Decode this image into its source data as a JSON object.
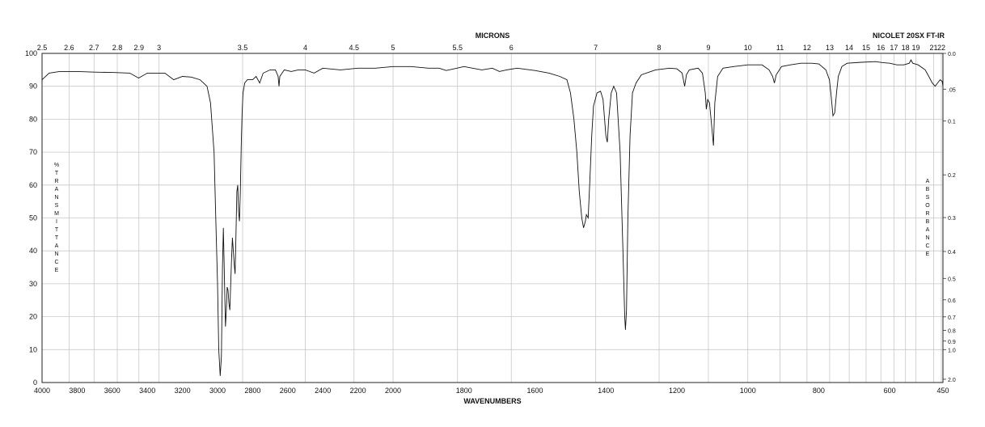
{
  "chart_data": {
    "type": "line",
    "title_microns": "MICRONS",
    "instrument": "NICOLET 20SX FT-IR",
    "xlabel": "WAVENUMBERS",
    "ylabel_left": "% TRANSMITTANCE",
    "ylabel_right": "ABSORBANCE",
    "xlim": [
      4000,
      450
    ],
    "ylim": [
      0,
      100
    ],
    "grid": true,
    "wavenumber_ticks": [
      "4000",
      "3800",
      "3600",
      "3400",
      "3200",
      "3000",
      "2800",
      "2600",
      "2400",
      "2200",
      "2000",
      "1800",
      "1600",
      "1400",
      "1200",
      "1000",
      "800",
      "600",
      "450"
    ],
    "micron_ticks": [
      {
        "v": 2.5,
        "t": "2.5"
      },
      {
        "v": 2.6,
        "t": "2.6"
      },
      {
        "v": 2.7,
        "t": "2.7"
      },
      {
        "v": 2.8,
        "t": "2.8"
      },
      {
        "v": 2.9,
        "t": "2.9"
      },
      {
        "v": 3,
        "t": "3"
      },
      {
        "v": 3.5,
        "t": "3.5"
      },
      {
        "v": 4,
        "t": "4"
      },
      {
        "v": 4.5,
        "t": "4.5"
      },
      {
        "v": 5,
        "t": "5"
      },
      {
        "v": 5.5,
        "t": "5.5"
      },
      {
        "v": 6,
        "t": "6"
      },
      {
        "v": 7,
        "t": "7"
      },
      {
        "v": 8,
        "t": "8"
      },
      {
        "v": 9,
        "t": "9"
      },
      {
        "v": 10,
        "t": "10"
      },
      {
        "v": 11,
        "t": "11"
      },
      {
        "v": 12,
        "t": "12"
      },
      {
        "v": 13,
        "t": "13"
      },
      {
        "v": 14,
        "t": "14"
      },
      {
        "v": 15,
        "t": "15"
      },
      {
        "v": 16,
        "t": "16"
      },
      {
        "v": 17,
        "t": "17"
      },
      {
        "v": 18,
        "t": "18"
      },
      {
        "v": 19,
        "t": "19"
      },
      {
        "v": 21,
        "t": "21"
      },
      {
        "v": 22,
        "t": "22"
      }
    ],
    "transmittance_ticks": [
      "0",
      "10",
      "20",
      "30",
      "40",
      "50",
      "60",
      "70",
      "80",
      "90",
      "100"
    ],
    "absorbance_ticks": [
      {
        "v": 0.0,
        "t": "0.0"
      },
      {
        "v": 0.05,
        "t": ".05"
      },
      {
        "v": 0.1,
        "t": "0.1"
      },
      {
        "v": 0.2,
        "t": "0.2"
      },
      {
        "v": 0.3,
        "t": "0.3"
      },
      {
        "v": 0.4,
        "t": "0.4"
      },
      {
        "v": 0.5,
        "t": "0.5"
      },
      {
        "v": 0.6,
        "t": "0.6"
      },
      {
        "v": 0.7,
        "t": "0.7"
      },
      {
        "v": 0.8,
        "t": "0.8"
      },
      {
        "v": 0.9,
        "t": "0.9"
      },
      {
        "v": 1.0,
        "t": "1.0"
      },
      {
        "v": 2.0,
        "t": "2.0"
      }
    ],
    "spectrum": [
      [
        4000,
        92
      ],
      [
        3960,
        94
      ],
      [
        3900,
        94.5
      ],
      [
        3800,
        94.5
      ],
      [
        3700,
        94.3
      ],
      [
        3600,
        94.2
      ],
      [
        3500,
        94
      ],
      [
        3450,
        92.5
      ],
      [
        3400,
        94
      ],
      [
        3300,
        94
      ],
      [
        3250,
        92
      ],
      [
        3200,
        93
      ],
      [
        3150,
        92.8
      ],
      [
        3100,
        92
      ],
      [
        3060,
        90
      ],
      [
        3040,
        85
      ],
      [
        3020,
        70
      ],
      [
        3010,
        50
      ],
      [
        3000,
        30
      ],
      [
        2993,
        10
      ],
      [
        2985,
        2
      ],
      [
        2978,
        8
      ],
      [
        2972,
        35
      ],
      [
        2967,
        47
      ],
      [
        2963,
        38
      ],
      [
        2958,
        25
      ],
      [
        2955,
        17
      ],
      [
        2950,
        22
      ],
      [
        2945,
        29
      ],
      [
        2940,
        28
      ],
      [
        2935,
        24
      ],
      [
        2930,
        22
      ],
      [
        2925,
        30
      ],
      [
        2920,
        38
      ],
      [
        2915,
        44
      ],
      [
        2910,
        40
      ],
      [
        2905,
        36
      ],
      [
        2900,
        33
      ],
      [
        2895,
        45
      ],
      [
        2890,
        58
      ],
      [
        2885,
        60
      ],
      [
        2880,
        52
      ],
      [
        2875,
        49
      ],
      [
        2870,
        58
      ],
      [
        2865,
        72
      ],
      [
        2860,
        82
      ],
      [
        2855,
        88
      ],
      [
        2845,
        91
      ],
      [
        2830,
        92
      ],
      [
        2800,
        92
      ],
      [
        2780,
        93
      ],
      [
        2760,
        91
      ],
      [
        2740,
        94
      ],
      [
        2700,
        95
      ],
      [
        2670,
        95
      ],
      [
        2655,
        93
      ],
      [
        2650,
        90
      ],
      [
        2645,
        93
      ],
      [
        2620,
        95
      ],
      [
        2580,
        94.5
      ],
      [
        2540,
        95
      ],
      [
        2500,
        95
      ],
      [
        2450,
        94
      ],
      [
        2400,
        95.5
      ],
      [
        2300,
        95
      ],
      [
        2200,
        95.5
      ],
      [
        2100,
        95.5
      ],
      [
        2000,
        96
      ],
      [
        1950,
        96
      ],
      [
        1900,
        95.5
      ],
      [
        1870,
        95.5
      ],
      [
        1850,
        94.8
      ],
      [
        1820,
        95.5
      ],
      [
        1800,
        96
      ],
      [
        1750,
        95
      ],
      [
        1720,
        95.5
      ],
      [
        1700,
        94.5
      ],
      [
        1680,
        95
      ],
      [
        1650,
        95.5
      ],
      [
        1600,
        94.8
      ],
      [
        1560,
        94
      ],
      [
        1530,
        93
      ],
      [
        1510,
        92
      ],
      [
        1500,
        88
      ],
      [
        1490,
        80
      ],
      [
        1482,
        70
      ],
      [
        1475,
        58
      ],
      [
        1468,
        50
      ],
      [
        1463,
        47
      ],
      [
        1458,
        49
      ],
      [
        1455,
        51
      ],
      [
        1450,
        50
      ],
      [
        1445,
        62
      ],
      [
        1440,
        75
      ],
      [
        1435,
        84
      ],
      [
        1425,
        88
      ],
      [
        1415,
        88.5
      ],
      [
        1408,
        86
      ],
      [
        1400,
        75
      ],
      [
        1396,
        73
      ],
      [
        1392,
        80
      ],
      [
        1385,
        88
      ],
      [
        1378,
        90
      ],
      [
        1370,
        88
      ],
      [
        1360,
        70
      ],
      [
        1352,
        40
      ],
      [
        1347,
        20
      ],
      [
        1345,
        16
      ],
      [
        1342,
        22
      ],
      [
        1338,
        50
      ],
      [
        1332,
        75
      ],
      [
        1325,
        88
      ],
      [
        1315,
        91
      ],
      [
        1300,
        93.5
      ],
      [
        1260,
        95
      ],
      [
        1220,
        95.5
      ],
      [
        1200,
        95.3
      ],
      [
        1185,
        94
      ],
      [
        1178,
        90
      ],
      [
        1173,
        93.5
      ],
      [
        1165,
        95
      ],
      [
        1140,
        95.5
      ],
      [
        1128,
        94
      ],
      [
        1120,
        88
      ],
      [
        1117,
        83
      ],
      [
        1113,
        86
      ],
      [
        1108,
        85
      ],
      [
        1102,
        78
      ],
      [
        1097,
        72
      ],
      [
        1093,
        85
      ],
      [
        1085,
        93
      ],
      [
        1070,
        95.5
      ],
      [
        1040,
        96
      ],
      [
        1000,
        96.5
      ],
      [
        960,
        96.5
      ],
      [
        940,
        95
      ],
      [
        930,
        93
      ],
      [
        925,
        91
      ],
      [
        920,
        93.5
      ],
      [
        905,
        96
      ],
      [
        880,
        96.5
      ],
      [
        850,
        97
      ],
      [
        820,
        97
      ],
      [
        800,
        96.8
      ],
      [
        780,
        95
      ],
      [
        770,
        92
      ],
      [
        765,
        87
      ],
      [
        760,
        81
      ],
      [
        755,
        82
      ],
      [
        750,
        88
      ],
      [
        745,
        93
      ],
      [
        735,
        96
      ],
      [
        720,
        97
      ],
      [
        680,
        97.3
      ],
      [
        640,
        97.5
      ],
      [
        620,
        97.2
      ],
      [
        600,
        97
      ],
      [
        580,
        96.5
      ],
      [
        560,
        96.5
      ],
      [
        545,
        97
      ],
      [
        540,
        98
      ],
      [
        535,
        97
      ],
      [
        520,
        96.5
      ],
      [
        500,
        95
      ],
      [
        490,
        93
      ],
      [
        480,
        91
      ],
      [
        472,
        90
      ],
      [
        465,
        91
      ],
      [
        458,
        92
      ],
      [
        452,
        91.5
      ],
      [
        450,
        90
      ]
    ]
  }
}
